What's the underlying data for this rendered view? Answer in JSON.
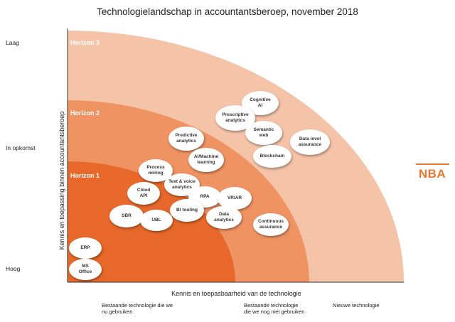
{
  "title": "Technologielandschap in accountantsberoep, november 2018",
  "y_axis": {
    "title": "Kennis en toepassing binnen accountantsberoep",
    "levels": [
      "Laag",
      "In opkomst",
      "Hoog"
    ]
  },
  "x_axis": {
    "title": "Kennis en toepasbaarheid van de technologie",
    "categories": [
      "Bestaande technologie die we\nnu gebruiken",
      "Bestaande technologie\ndie we nog niet gebruiken",
      "Nieuwe technologie"
    ]
  },
  "horizons": [
    {
      "label": "Horizon 3",
      "color": "#f5c3a8"
    },
    {
      "label": "Horizon 2",
      "color": "#ef9363"
    },
    {
      "label": "Horizon 1",
      "color": "#e7682a"
    }
  ],
  "technologies": [
    {
      "label": "Cognitive\nAI"
    },
    {
      "label": "Prescriptive\nanalytics"
    },
    {
      "label": "Semantic\nweb"
    },
    {
      "label": "Data level\nassurance"
    },
    {
      "label": "Blockchain"
    },
    {
      "label": "Predictive\nanalytics"
    },
    {
      "label": "AI/Machine\nlearning"
    },
    {
      "label": "Process\nmining"
    },
    {
      "label": "Text & voice\nanalytics"
    },
    {
      "label": "Cloud\nAPI"
    },
    {
      "label": "RPA"
    },
    {
      "label": "VR/AR"
    },
    {
      "label": "SBR"
    },
    {
      "label": "BI tooling"
    },
    {
      "label": "UBL"
    },
    {
      "label": "Data\nanalytics"
    },
    {
      "label": "Continuous\nassurance"
    },
    {
      "label": "ERP"
    },
    {
      "label": "MS\nOffice"
    }
  ],
  "logo": "NBA"
}
